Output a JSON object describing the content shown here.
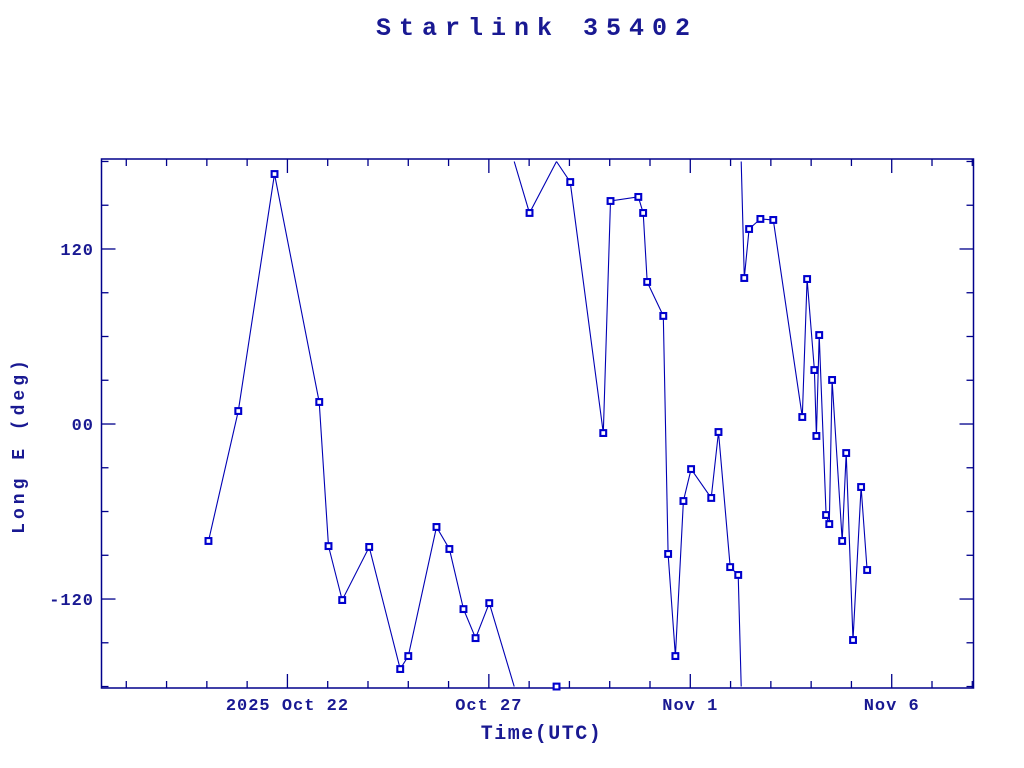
{
  "window": {
    "title": "Starlink 35402"
  },
  "chart_data": {
    "type": "line",
    "title": "Starlink 35402",
    "xlabel": "Time(UTC)",
    "ylabel": "Long E (deg)",
    "x_axis_note": "days relative to 2025 Oct 22 00:00 UTC",
    "xlim_days": [
      -4.615,
      17.03
    ],
    "ylim": [
      -181.0,
      181.7
    ],
    "x_major_ticks": [
      {
        "day": 0,
        "label": "2025 Oct 22"
      },
      {
        "day": 5,
        "label": "Oct 27"
      },
      {
        "day": 10,
        "label": "Nov  1"
      },
      {
        "day": 15,
        "label": "Nov  6"
      }
    ],
    "x_minor_step_days": 1,
    "y_major_ticks": [
      {
        "value": 120,
        "label": "120"
      },
      {
        "value": 0,
        "label": "00"
      },
      {
        "value": -120,
        "label": "-120"
      }
    ],
    "y_minor_step": 30,
    "wrap_at_deg": 180,
    "grid": "off",
    "legend": "none",
    "marker": "open-square",
    "colors": {
      "text": "#191992",
      "frame": "#00008b",
      "line": "#0000b4",
      "marker": "#0000cd",
      "background": "#ffffff"
    },
    "series": [
      {
        "name": "Long E (deg)",
        "points": [
          [
            -1.96,
            -80.2
          ],
          [
            -1.22,
            8.9
          ],
          [
            -0.32,
            171.4
          ],
          [
            0.79,
            15.1
          ],
          [
            1.02,
            -83.7
          ],
          [
            1.36,
            -120.7
          ],
          [
            2.03,
            -84.3
          ],
          [
            2.8,
            -168.0
          ],
          [
            3.0,
            -159.1
          ],
          [
            3.7,
            -70.6
          ],
          [
            4.02,
            -85.7
          ],
          [
            4.37,
            -126.9
          ],
          [
            4.67,
            -146.8
          ],
          [
            5.01,
            -122.8
          ],
          [
            6.01,
            144.7
          ],
          [
            6.68,
            -180.0
          ],
          [
            7.02,
            165.9
          ],
          [
            7.84,
            -6.2
          ],
          [
            8.02,
            152.9
          ],
          [
            8.71,
            155.7
          ],
          [
            8.83,
            144.7
          ],
          [
            8.93,
            97.4
          ],
          [
            9.33,
            74.1
          ],
          [
            9.45,
            -89.1
          ],
          [
            9.63,
            -159.1
          ],
          [
            9.83,
            -52.8
          ],
          [
            10.02,
            -30.9
          ],
          [
            10.52,
            -50.7
          ],
          [
            10.7,
            -5.5
          ],
          [
            10.99,
            -98.1
          ],
          [
            11.19,
            -103.5
          ],
          [
            11.34,
            100.1
          ],
          [
            11.46,
            133.7
          ],
          [
            11.74,
            140.6
          ],
          [
            12.06,
            139.9
          ],
          [
            12.78,
            4.8
          ],
          [
            12.9,
            99.4
          ],
          [
            13.08,
            37.0
          ],
          [
            13.13,
            -8.2
          ],
          [
            13.2,
            61.0
          ],
          [
            13.37,
            -62.4
          ],
          [
            13.45,
            -68.6
          ],
          [
            13.52,
            30.2
          ],
          [
            13.77,
            -80.2
          ],
          [
            13.87,
            -19.9
          ],
          [
            14.04,
            -148.1
          ],
          [
            14.24,
            -43.2
          ],
          [
            14.39,
            -100.1
          ]
        ]
      }
    ]
  }
}
